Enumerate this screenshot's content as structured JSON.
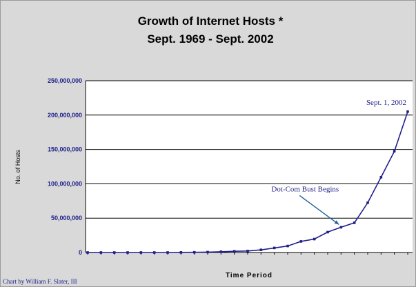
{
  "chart_data": {
    "type": "line",
    "title_line1": "Growth of Internet Hosts *",
    "title_line2": "Sept. 1969 - Sept. 2002",
    "xlabel": "Time Period",
    "ylabel": "No. of Hosts",
    "ylim": [
      0,
      250000000
    ],
    "y_ticks": [
      0,
      50000000,
      100000000,
      150000000,
      200000000,
      250000000
    ],
    "y_tick_labels": [
      "0",
      "50,000,000",
      "100,000,000",
      "150,000,000",
      "200,000,000",
      "250,000,000"
    ],
    "grid": "horizontal",
    "credit": "Chart by William F. Slater, III",
    "series": [
      {
        "values": [
          4,
          23,
          213,
          562,
          1961,
          5089,
          28174,
          159000,
          313000,
          617000,
          1136000,
          1776000,
          2217000,
          3864000,
          6642000,
          9472000,
          16146000,
          19540000,
          29670000,
          36739000,
          43230000,
          72398092,
          109574429,
          147344723,
          205000000
        ]
      }
    ],
    "annotations": [
      {
        "text": "Sept. 1, 2002",
        "series_index": 24
      },
      {
        "text": "Dot-Com Bust Begins",
        "series_index": 19
      }
    ],
    "colors": {
      "line": "#1f1f8a",
      "text": "#1f1f8a",
      "frame_bg": "#d9d9d9",
      "plot_bg": "#ffffff"
    }
  }
}
